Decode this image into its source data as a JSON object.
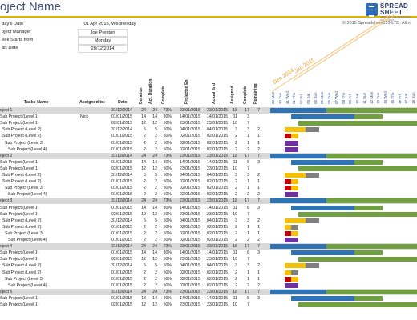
{
  "header": {
    "title": "oject Name",
    "logo_line1": "SPREAD",
    "logo_line2": "SHEET",
    "logo_line3": "TEMPLATES & ADVANCED SOLUTIONS",
    "copyright": "© 2015 Spreadsheet123 LTD. All ri"
  },
  "info": [
    {
      "label": "day's Date",
      "value": "01 Apr 2015, Wednesday"
    },
    {
      "label": "oject Manager",
      "value": "Joe Preston"
    },
    {
      "label": "eek Starts from",
      "value": "Monday"
    },
    {
      "label": "art Date",
      "value": "28/12/2014"
    }
  ],
  "columns": {
    "task": "Tasks Name",
    "assigned_to": "Assigned to:",
    "date": "Date",
    "duration": "Duration",
    "act_duration": "Act. Duration",
    "complete": "Complete",
    "projected_end": "Projected En",
    "actual_end": "Actual End",
    "assigned": "Assigned",
    "completed": "Complete",
    "remaining": "Remaining"
  },
  "timeline": {
    "months": [
      "Dec 2014",
      "Jan 2015"
    ],
    "days": [
      "29 Mon",
      "30 Tue",
      "31 Wed",
      "01 Thu",
      "02 Fri",
      "03 Sat",
      "04 Sun",
      "05 Mon",
      "06 Tue",
      "07 Wed",
      "08 Thu",
      "09 Fri",
      "10 Sat",
      "11 Sun",
      "12 Mon",
      "13 Tue",
      "14 Wed",
      "15 Thu",
      "16 Fri",
      "17 Sat",
      "18 Sun"
    ],
    "colors": {
      "blue": "#2e74b5",
      "green": "#70a040",
      "yellow": "#f6c000",
      "red": "#c00000",
      "purple": "#7030a0",
      "grey": "#808080"
    }
  },
  "rows": [
    {
      "kind": "proj",
      "task": "oject 1",
      "assigned": "",
      "date": "31/12/2014",
      "dur": "24",
      "act": "24",
      "pct": "73%",
      "pend": "23/01/2015",
      "aend": "23/01/2015",
      "as": "18",
      "co": "17",
      "re": "7",
      "bars": [
        [
          0,
          8,
          "blue"
        ],
        [
          8,
          21,
          "green"
        ]
      ]
    },
    {
      "kind": "sub",
      "task": "Sub Project (Level 1)",
      "assigned": "Nick",
      "date": "01/01/2015",
      "dur": "14",
      "act": "14",
      "pct": "80%",
      "pend": "14/01/2015",
      "aend": "14/01/2015",
      "as": "11",
      "co": "3",
      "re": "",
      "bars": [
        [
          3,
          12,
          "blue"
        ],
        [
          12,
          16,
          "green"
        ]
      ]
    },
    {
      "kind": "sub",
      "task": "Sub Project (Level 1)",
      "assigned": "",
      "date": "02/01/2015",
      "dur": "12",
      "act": "12",
      "pct": "50%",
      "pend": "23/01/2015",
      "aend": "23/01/2015",
      "as": "10",
      "co": "7",
      "re": "",
      "bars": [
        [
          4,
          8,
          "green"
        ],
        [
          8,
          21,
          "green"
        ]
      ]
    },
    {
      "kind": "sub",
      "task": "Sub Project (Level 2)",
      "assigned": "",
      "date": "31/12/2014",
      "dur": "5",
      "act": "5",
      "pct": "50%",
      "pend": "04/01/2015",
      "aend": "04/01/2015",
      "as": "3",
      "co": "3",
      "re": "2",
      "bars": [
        [
          2,
          5,
          "yellow"
        ],
        [
          5,
          7,
          "grey"
        ]
      ]
    },
    {
      "kind": "sub",
      "task": "Sub Project (Level 2)",
      "assigned": "",
      "date": "01/01/2015",
      "dur": "2",
      "act": "2",
      "pct": "50%",
      "pend": "02/01/2015",
      "aend": "02/01/2015",
      "as": "2",
      "co": "1",
      "re": "1",
      "bars": [
        [
          2,
          3,
          "red"
        ],
        [
          3,
          4,
          "yellow"
        ]
      ]
    },
    {
      "kind": "sub",
      "task": "Sub Project (Level 3)",
      "assigned": "",
      "date": "01/01/2015",
      "dur": "2",
      "act": "2",
      "pct": "50%",
      "pend": "02/01/2015",
      "aend": "02/01/2015",
      "as": "2",
      "co": "1",
      "re": "1",
      "bars": [
        [
          2,
          4,
          "purple"
        ]
      ]
    },
    {
      "kind": "sub",
      "task": "Sub Project (Level 4)",
      "assigned": "",
      "date": "01/01/2015",
      "dur": "2",
      "act": "2",
      "pct": "50%",
      "pend": "02/01/2015",
      "aend": "02/01/2015",
      "as": "2",
      "co": "2",
      "re": "2",
      "bars": [
        [
          2,
          4,
          "purple"
        ]
      ]
    },
    {
      "kind": "proj",
      "task": "oject 2",
      "assigned": "",
      "date": "31/12/2014",
      "dur": "24",
      "act": "24",
      "pct": "73%",
      "pend": "23/01/2015",
      "aend": "23/01/2015",
      "as": "18",
      "co": "17",
      "re": "7",
      "bars": [
        [
          0,
          8,
          "blue"
        ],
        [
          8,
          21,
          "green"
        ]
      ]
    },
    {
      "kind": "sub",
      "task": "Sub Project (Level 1)",
      "assigned": "",
      "date": "01/01/2015",
      "dur": "14",
      "act": "14",
      "pct": "80%",
      "pend": "14/01/2015",
      "aend": "14/01/2015",
      "as": "11",
      "co": "8",
      "re": "3",
      "bars": [
        [
          3,
          12,
          "blue"
        ],
        [
          12,
          16,
          "green"
        ]
      ]
    },
    {
      "kind": "sub",
      "task": "Sub Project (Level 1)",
      "assigned": "",
      "date": "02/01/2015",
      "dur": "12",
      "act": "12",
      "pct": "50%",
      "pend": "23/01/2015",
      "aend": "23/01/2015",
      "as": "10",
      "co": "7",
      "re": "",
      "bars": [
        [
          4,
          8,
          "green"
        ],
        [
          8,
          21,
          "green"
        ]
      ]
    },
    {
      "kind": "sub",
      "task": "Sub Project (Level 2)",
      "assigned": "",
      "date": "31/12/2014",
      "dur": "5",
      "act": "5",
      "pct": "50%",
      "pend": "04/01/2015",
      "aend": "04/01/2015",
      "as": "3",
      "co": "3",
      "re": "2",
      "bars": [
        [
          2,
          5,
          "yellow"
        ],
        [
          5,
          7,
          "grey"
        ]
      ]
    },
    {
      "kind": "sub",
      "task": "Sub Project (Level 2)",
      "assigned": "",
      "date": "01/01/2015",
      "dur": "2",
      "act": "2",
      "pct": "50%",
      "pend": "02/01/2015",
      "aend": "02/01/2015",
      "as": "2",
      "co": "1",
      "re": "1",
      "bars": [
        [
          2,
          3,
          "red"
        ],
        [
          3,
          4,
          "yellow"
        ]
      ]
    },
    {
      "kind": "sub",
      "task": "Sub Project (Level 3)",
      "assigned": "",
      "date": "01/01/2015",
      "dur": "2",
      "act": "2",
      "pct": "50%",
      "pend": "02/01/2015",
      "aend": "02/01/2015",
      "as": "2",
      "co": "1",
      "re": "1",
      "bars": [
        [
          2,
          3,
          "red"
        ],
        [
          3,
          4,
          "yellow"
        ]
      ]
    },
    {
      "kind": "sub",
      "task": "Sub Project (Level 4)",
      "assigned": "",
      "date": "01/01/2015",
      "dur": "2",
      "act": "2",
      "pct": "50%",
      "pend": "02/01/2015",
      "aend": "02/01/2015",
      "as": "2",
      "co": "2",
      "re": "2",
      "bars": [
        [
          2,
          4,
          "purple"
        ]
      ]
    },
    {
      "kind": "proj",
      "task": "oject 3",
      "assigned": "",
      "date": "31/12/2014",
      "dur": "24",
      "act": "24",
      "pct": "73%",
      "pend": "23/01/2015",
      "aend": "23/01/2015",
      "as": "18",
      "co": "17",
      "re": "7",
      "bars": [
        [
          0,
          8,
          "blue"
        ],
        [
          8,
          21,
          "green"
        ]
      ]
    },
    {
      "kind": "sub",
      "task": "Sub Project (Level 1)",
      "assigned": "",
      "date": "01/01/2015",
      "dur": "14",
      "act": "14",
      "pct": "80%",
      "pend": "14/01/2015",
      "aend": "14/01/2015",
      "as": "11",
      "co": "8",
      "re": "3",
      "bars": [
        [
          3,
          12,
          "blue"
        ],
        [
          12,
          16,
          "green"
        ]
      ]
    },
    {
      "kind": "sub",
      "task": "Sub Project (Level 1)",
      "assigned": "",
      "date": "02/01/2015",
      "dur": "12",
      "act": "12",
      "pct": "50%",
      "pend": "23/01/2015",
      "aend": "23/01/2015",
      "as": "10",
      "co": "7",
      "re": "",
      "bars": [
        [
          4,
          8,
          "green"
        ],
        [
          8,
          21,
          "green"
        ]
      ]
    },
    {
      "kind": "sub",
      "task": "Sub Project (Level 2)",
      "assigned": "",
      "date": "31/12/2014",
      "dur": "5",
      "act": "5",
      "pct": "50%",
      "pend": "04/01/2015",
      "aend": "04/01/2015",
      "as": "3",
      "co": "3",
      "re": "2",
      "bars": [
        [
          2,
          5,
          "yellow"
        ],
        [
          5,
          7,
          "grey"
        ]
      ]
    },
    {
      "kind": "sub",
      "task": "Sub Project (Level 2)",
      "assigned": "",
      "date": "01/01/2015",
      "dur": "2",
      "act": "2",
      "pct": "50%",
      "pend": "02/01/2015",
      "aend": "02/01/2015",
      "as": "2",
      "co": "1",
      "re": "1",
      "bars": [
        [
          2,
          3,
          "yellow"
        ],
        [
          3,
          4,
          "grey"
        ]
      ]
    },
    {
      "kind": "sub",
      "task": "Sub Project (Level 3)",
      "assigned": "",
      "date": "01/01/2015",
      "dur": "2",
      "act": "2",
      "pct": "50%",
      "pend": "02/01/2015",
      "aend": "02/01/2015",
      "as": "2",
      "co": "1",
      "re": "1",
      "bars": [
        [
          2,
          3,
          "red"
        ],
        [
          3,
          4,
          "yellow"
        ]
      ]
    },
    {
      "kind": "sub",
      "task": "Sub Project (Level 4)",
      "assigned": "",
      "date": "01/01/2015",
      "dur": "2",
      "act": "2",
      "pct": "50%",
      "pend": "02/01/2015",
      "aend": "02/01/2015",
      "as": "2",
      "co": "2",
      "re": "2",
      "bars": [
        [
          2,
          4,
          "purple"
        ]
      ]
    },
    {
      "kind": "proj",
      "task": "oject 4",
      "assigned": "",
      "date": "31/12/2014",
      "dur": "24",
      "act": "24",
      "pct": "73%",
      "pend": "23/01/2015",
      "aend": "23/01/2015",
      "as": "18",
      "co": "17",
      "re": "7",
      "bars": [
        [
          0,
          8,
          "blue"
        ],
        [
          8,
          21,
          "green"
        ]
      ]
    },
    {
      "kind": "sub",
      "task": "Sub Project (Level 1)",
      "assigned": "",
      "date": "01/01/2015",
      "dur": "14",
      "act": "14",
      "pct": "80%",
      "pend": "14/01/2015",
      "aend": "14/01/2015",
      "as": "11",
      "co": "8",
      "re": "3",
      "bars": [
        [
          3,
          12,
          "blue"
        ],
        [
          12,
          16,
          "green"
        ]
      ]
    },
    {
      "kind": "sub",
      "task": "Sub Project (Level 1)",
      "assigned": "",
      "date": "02/01/2015",
      "dur": "12",
      "act": "12",
      "pct": "50%",
      "pend": "23/01/2015",
      "aend": "23/01/2015",
      "as": "10",
      "co": "7",
      "re": "",
      "bars": [
        [
          4,
          8,
          "green"
        ],
        [
          8,
          21,
          "green"
        ]
      ]
    },
    {
      "kind": "sub",
      "task": "Sub Project (Level 2)",
      "assigned": "",
      "date": "31/12/2014",
      "dur": "5",
      "act": "5",
      "pct": "50%",
      "pend": "04/01/2015",
      "aend": "04/01/2015",
      "as": "3",
      "co": "3",
      "re": "2",
      "bars": [
        [
          2,
          5,
          "yellow"
        ],
        [
          5,
          7,
          "grey"
        ]
      ]
    },
    {
      "kind": "sub",
      "task": "Sub Project (Level 2)",
      "assigned": "",
      "date": "01/01/2015",
      "dur": "2",
      "act": "2",
      "pct": "50%",
      "pend": "02/01/2015",
      "aend": "02/01/2015",
      "as": "2",
      "co": "1",
      "re": "1",
      "bars": [
        [
          2,
          3,
          "yellow"
        ],
        [
          3,
          4,
          "grey"
        ]
      ]
    },
    {
      "kind": "sub",
      "task": "Sub Project (Level 3)",
      "assigned": "",
      "date": "01/01/2015",
      "dur": "2",
      "act": "2",
      "pct": "50%",
      "pend": "02/01/2015",
      "aend": "02/01/2015",
      "as": "2",
      "co": "1",
      "re": "1",
      "bars": [
        [
          2,
          3,
          "red"
        ],
        [
          3,
          4,
          "yellow"
        ]
      ]
    },
    {
      "kind": "sub",
      "task": "Sub Project (Level 4)",
      "assigned": "",
      "date": "01/01/2015",
      "dur": "2",
      "act": "2",
      "pct": "50%",
      "pend": "02/01/2015",
      "aend": "02/01/2015",
      "as": "2",
      "co": "2",
      "re": "2",
      "bars": [
        [
          2,
          4,
          "purple"
        ]
      ]
    },
    {
      "kind": "proj",
      "task": "oject 5",
      "assigned": "",
      "date": "31/12/2014",
      "dur": "24",
      "act": "24",
      "pct": "73%",
      "pend": "23/01/2015",
      "aend": "23/01/2015",
      "as": "18",
      "co": "17",
      "re": "7",
      "bars": [
        [
          0,
          8,
          "blue"
        ],
        [
          8,
          21,
          "green"
        ]
      ]
    },
    {
      "kind": "sub",
      "task": "Sub Project (Level 1)",
      "assigned": "",
      "date": "01/01/2015",
      "dur": "14",
      "act": "14",
      "pct": "80%",
      "pend": "14/01/2015",
      "aend": "14/01/2015",
      "as": "11",
      "co": "8",
      "re": "3",
      "bars": [
        [
          3,
          12,
          "blue"
        ],
        [
          12,
          16,
          "green"
        ]
      ]
    },
    {
      "kind": "sub",
      "task": "Sub Project (Level 1)",
      "assigned": "",
      "date": "02/01/2015",
      "dur": "12",
      "act": "12",
      "pct": "50%",
      "pend": "23/01/2015",
      "aend": "23/01/2015",
      "as": "10",
      "co": "7",
      "re": "",
      "bars": [
        [
          4,
          8,
          "green"
        ],
        [
          8,
          21,
          "green"
        ]
      ]
    }
  ]
}
